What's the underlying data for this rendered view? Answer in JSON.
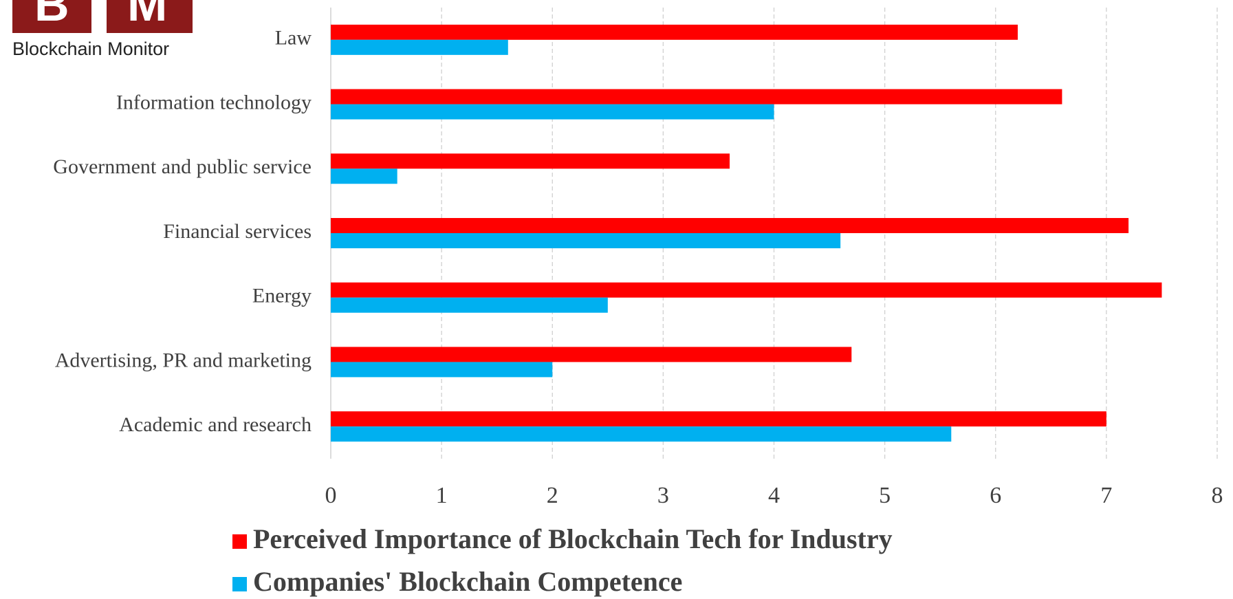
{
  "chart_data": {
    "type": "bar",
    "orientation": "horizontal",
    "logo_mark": "BM",
    "logo_text": "Blockchain Monitor",
    "categories": [
      "Law",
      "Information technology",
      "Government and public service",
      "Financial services",
      "Energy",
      "Advertising, PR and marketing",
      "Academic and research"
    ],
    "series": [
      {
        "name": "Perceived Importance of Blockchain Tech for Industry",
        "color": "#ff0000",
        "values": [
          6.2,
          6.6,
          3.6,
          7.2,
          7.5,
          4.7,
          7.0
        ]
      },
      {
        "name": "Companies' Blockchain Competence",
        "color": "#00b0f0",
        "values": [
          1.6,
          4.0,
          0.6,
          4.6,
          2.5,
          2.0,
          5.6
        ]
      }
    ],
    "xlim": [
      0,
      8
    ],
    "xticks": [
      0,
      1,
      2,
      3,
      4,
      5,
      6,
      7,
      8
    ],
    "grid": true,
    "legend": "bottom"
  }
}
